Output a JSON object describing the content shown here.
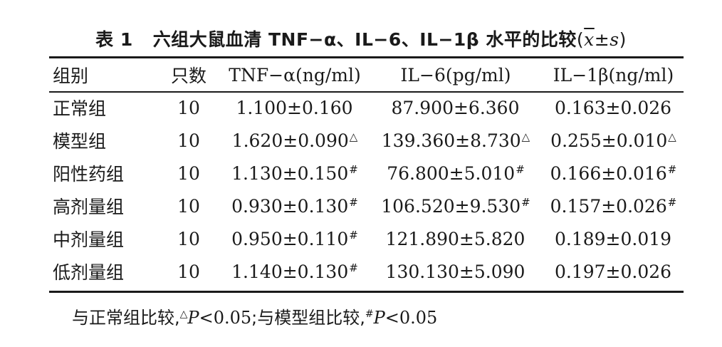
{
  "caption": {
    "number": "表 1",
    "title": "六组大鼠血清 TNF−α、IL−6、IL−1β 水平的比较",
    "paren_open": "(",
    "mean_symbol": "x",
    "pm": "±",
    "sd_symbol": "s",
    "paren_close": ")"
  },
  "table": {
    "headers": {
      "group": "组别",
      "n": "只数",
      "tnf": "TNF−α(ng/ml)",
      "il6": "IL−6(pg/ml)",
      "il1": "IL−1β(ng/ml)"
    },
    "rows": [
      {
        "group": "正常组",
        "n": "10",
        "tnf": "1.100±0.160",
        "tnf_mark": "",
        "il6": "87.900±6.360",
        "il6_mark": "",
        "il1": "0.163±0.026",
        "il1_mark": ""
      },
      {
        "group": "模型组",
        "n": "10",
        "tnf": "1.620±0.090",
        "tnf_mark": "△",
        "il6": "139.360±8.730",
        "il6_mark": "△",
        "il1": "0.255±0.010",
        "il1_mark": "△"
      },
      {
        "group": "阳性药组",
        "n": "10",
        "tnf": "1.130±0.150",
        "tnf_mark": "#",
        "il6": "76.800±5.010",
        "il6_mark": "#",
        "il1": "0.166±0.016",
        "il1_mark": "#"
      },
      {
        "group": "高剂量组",
        "n": "10",
        "tnf": "0.930±0.130",
        "tnf_mark": "#",
        "il6": "106.520±9.530",
        "il6_mark": "#",
        "il1": "0.157±0.026",
        "il1_mark": "#"
      },
      {
        "group": "中剂量组",
        "n": "10",
        "tnf": "0.950±0.110",
        "tnf_mark": "#",
        "il6": "121.890±5.820",
        "il6_mark": "",
        "il1": "0.189±0.019",
        "il1_mark": ""
      },
      {
        "group": "低剂量组",
        "n": "10",
        "tnf": "1.140±0.130",
        "tnf_mark": "#",
        "il6": "130.130±5.090",
        "il6_mark": "",
        "il1": "0.197±0.026",
        "il1_mark": ""
      }
    ]
  },
  "footnote": {
    "part1": "与正常组比较,",
    "mark1": "△",
    "p1": "P",
    "val1": "<0.05",
    "sep": ";与模型组比较,",
    "mark2": "#",
    "p2": "P",
    "val2": "<0.05"
  }
}
